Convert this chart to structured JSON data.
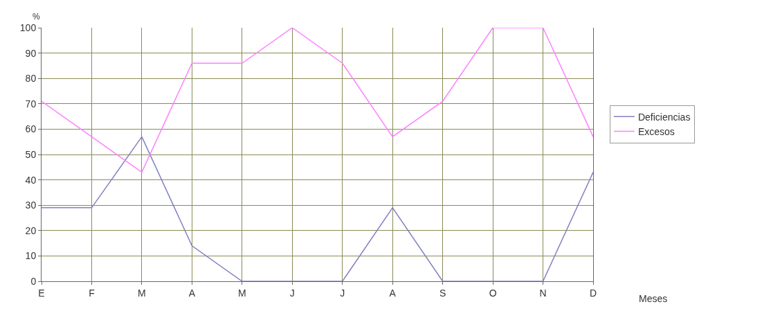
{
  "chart_data": {
    "type": "line",
    "xlabel": "Meses",
    "ylabel": "%",
    "categories": [
      "E",
      "F",
      "M",
      "A",
      "M",
      "J",
      "J",
      "A",
      "S",
      "O",
      "N",
      "D"
    ],
    "series": [
      {
        "name": "Deficiencias",
        "color": "#8080c0",
        "values": [
          29,
          29,
          57,
          14,
          0,
          0,
          0,
          29,
          0,
          0,
          0,
          43
        ]
      },
      {
        "name": "Excesos",
        "color": "#ff80ff",
        "values": [
          71,
          57,
          43,
          86,
          86,
          100,
          86,
          57,
          71,
          100,
          100,
          57
        ]
      }
    ],
    "ylim": [
      0,
      100
    ],
    "yticks": [
      0,
      10,
      20,
      30,
      40,
      50,
      60,
      70,
      80,
      90,
      100
    ],
    "grid": true,
    "legend": "right",
    "marker": "none",
    "line_style": "solid"
  }
}
